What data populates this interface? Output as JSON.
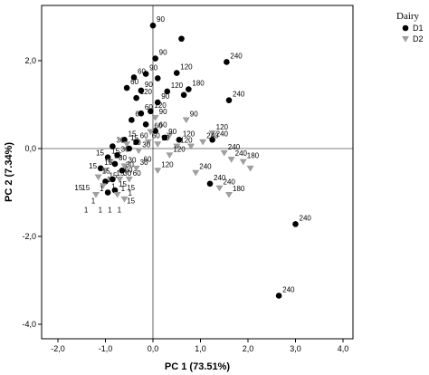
{
  "chart_data": {
    "type": "scatter",
    "title": "",
    "xlabel": "PC 1 (73.51%)",
    "ylabel": "PC 2 (7.34%)",
    "xlim": [
      -2.0,
      4.0
    ],
    "ylim": [
      -4.0,
      3.0
    ],
    "xticks": [
      "-2,0",
      "-1,0",
      "0,0",
      "1,0",
      "2,0",
      "3,0",
      "4,0"
    ],
    "yticks": [
      "-4,0",
      "-2,0",
      "0,0",
      "2,0"
    ],
    "xtick_values": [
      -2,
      -1,
      0,
      1,
      2,
      3,
      4
    ],
    "ytick_values": [
      -4,
      -2,
      0,
      2
    ],
    "grid": false,
    "legend": {
      "title": "Dairy",
      "placement": "top-right",
      "entries": [
        "D1",
        "D2"
      ]
    },
    "series": [
      {
        "name": "D1",
        "marker": "circle",
        "color": "#000000",
        "points": [
          {
            "x": 0.0,
            "y": 2.8,
            "label": "90"
          },
          {
            "x": 0.6,
            "y": 2.5,
            "label": ""
          },
          {
            "x": 0.05,
            "y": 2.05,
            "label": "90"
          },
          {
            "x": 1.55,
            "y": 1.97,
            "label": "240"
          },
          {
            "x": 0.5,
            "y": 1.72,
            "label": "120"
          },
          {
            "x": -0.15,
            "y": 1.7,
            "label": "90"
          },
          {
            "x": -0.4,
            "y": 1.62,
            "label": "60"
          },
          {
            "x": 0.1,
            "y": 1.6,
            "label": ""
          },
          {
            "x": -0.55,
            "y": 1.38,
            "label": "60"
          },
          {
            "x": 0.75,
            "y": 1.35,
            "label": "180"
          },
          {
            "x": -0.25,
            "y": 1.32,
            "label": "90"
          },
          {
            "x": 0.3,
            "y": 1.3,
            "label": "120"
          },
          {
            "x": 0.65,
            "y": 1.22,
            "label": ""
          },
          {
            "x": -0.35,
            "y": 1.15,
            "label": "120"
          },
          {
            "x": 1.6,
            "y": 1.1,
            "label": "240"
          },
          {
            "x": 0.1,
            "y": 1.05,
            "label": "90"
          },
          {
            "x": -0.05,
            "y": 0.85,
            "label": "120"
          },
          {
            "x": -0.25,
            "y": 0.8,
            "label": "60"
          },
          {
            "x": -0.45,
            "y": 0.65,
            "label": "60"
          },
          {
            "x": -0.15,
            "y": 0.55,
            "label": ""
          },
          {
            "x": 0.05,
            "y": 0.4,
            "label": "60"
          },
          {
            "x": 0.25,
            "y": 0.25,
            "label": "90"
          },
          {
            "x": 0.55,
            "y": 0.2,
            "label": "120"
          },
          {
            "x": 1.25,
            "y": 0.2,
            "label": "240"
          },
          {
            "x": -0.6,
            "y": 0.2,
            "label": "15"
          },
          {
            "x": -0.35,
            "y": 0.15,
            "label": "60"
          },
          {
            "x": -0.85,
            "y": 0.05,
            "label": "30"
          },
          {
            "x": -0.5,
            "y": 0.0,
            "label": "30"
          },
          {
            "x": -0.75,
            "y": -0.15,
            "label": "30"
          },
          {
            "x": -0.95,
            "y": -0.2,
            "label": "15"
          },
          {
            "x": -0.8,
            "y": -0.35,
            "label": "30"
          },
          {
            "x": -1.1,
            "y": -0.45,
            "label": "15"
          },
          {
            "x": -0.65,
            "y": -0.5,
            "label": "30"
          },
          {
            "x": -0.85,
            "y": -0.7,
            "label": "15"
          },
          {
            "x": -1.0,
            "y": -0.75,
            "label": "15"
          },
          {
            "x": -0.8,
            "y": -0.95,
            "label": "15"
          },
          {
            "x": -0.95,
            "y": -1.0,
            "label": "1"
          },
          {
            "x": 1.2,
            "y": -0.8,
            "label": "240"
          },
          {
            "x": 3.0,
            "y": -1.72,
            "label": "240"
          },
          {
            "x": 2.65,
            "y": -3.35,
            "label": "240"
          }
        ]
      },
      {
        "name": "D2",
        "marker": "triangle-down",
        "color": "#a0a0a0",
        "points": [
          {
            "x": 0.05,
            "y": 0.7,
            "label": "90"
          },
          {
            "x": 0.7,
            "y": 0.65,
            "label": "90"
          },
          {
            "x": -0.05,
            "y": 0.38,
            "label": "60"
          },
          {
            "x": 0.35,
            "y": 0.3,
            "label": ""
          },
          {
            "x": 1.25,
            "y": 0.35,
            "label": "120"
          },
          {
            "x": -0.1,
            "y": 0.15,
            "label": "60"
          },
          {
            "x": 0.1,
            "y": 0.1,
            "label": "90"
          },
          {
            "x": 0.5,
            "y": 0.05,
            "label": "120"
          },
          {
            "x": 0.8,
            "y": 0.05,
            "label": ""
          },
          {
            "x": 1.05,
            "y": 0.15,
            "label": "240"
          },
          {
            "x": -0.55,
            "y": 0.1,
            "label": "15"
          },
          {
            "x": -0.3,
            "y": -0.05,
            "label": "30"
          },
          {
            "x": 0.35,
            "y": -0.15,
            "label": "120"
          },
          {
            "x": 1.5,
            "y": -0.1,
            "label": "240"
          },
          {
            "x": 1.65,
            "y": -0.25,
            "label": "240"
          },
          {
            "x": 1.9,
            "y": -0.3,
            "label": "180"
          },
          {
            "x": 2.05,
            "y": -0.45,
            "label": ""
          },
          {
            "x": -0.9,
            "y": -0.3,
            "label": "15"
          },
          {
            "x": -0.6,
            "y": -0.4,
            "label": "30"
          },
          {
            "x": -0.35,
            "y": -0.45,
            "label": "30"
          },
          {
            "x": 0.1,
            "y": -0.5,
            "label": "120"
          },
          {
            "x": 0.9,
            "y": -0.55,
            "label": "240"
          },
          {
            "x": -1.0,
            "y": -0.5,
            "label": ""
          },
          {
            "x": -1.15,
            "y": -0.65,
            "label": "15"
          },
          {
            "x": -0.7,
            "y": -0.7,
            "label": "30"
          },
          {
            "x": -0.5,
            "y": -0.7,
            "label": "60"
          },
          {
            "x": -1.05,
            "y": -0.85,
            "label": "15"
          },
          {
            "x": -1.2,
            "y": -1.05,
            "label": "1"
          },
          {
            "x": -0.75,
            "y": -1.05,
            "label": "1"
          },
          {
            "x": -0.6,
            "y": -1.15,
            "label": "1"
          },
          {
            "x": 1.4,
            "y": -0.9,
            "label": "240"
          },
          {
            "x": 1.6,
            "y": -1.05,
            "label": "180"
          }
        ]
      }
    ],
    "free_labels": [
      {
        "x": -1.65,
        "y": -0.95,
        "label": "15"
      },
      {
        "x": -1.5,
        "y": -0.95,
        "label": "15"
      },
      {
        "x": -1.35,
        "y": -0.45,
        "label": "15"
      },
      {
        "x": -1.2,
        "y": -0.15,
        "label": "15"
      },
      {
        "x": -1.3,
        "y": -1.25,
        "label": "1"
      },
      {
        "x": -1.15,
        "y": -1.45,
        "label": "1"
      },
      {
        "x": -1.45,
        "y": -1.45,
        "label": "1"
      },
      {
        "x": -0.95,
        "y": -1.45,
        "label": "1"
      },
      {
        "x": -0.75,
        "y": -1.45,
        "label": "1"
      },
      {
        "x": -0.55,
        "y": -1.25,
        "label": "15"
      },
      {
        "x": -0.55,
        "y": -0.95,
        "label": "15"
      },
      {
        "x": -0.6,
        "y": -0.55,
        "label": "60"
      },
      {
        "x": -0.2,
        "y": -0.3,
        "label": "60"
      }
    ]
  }
}
